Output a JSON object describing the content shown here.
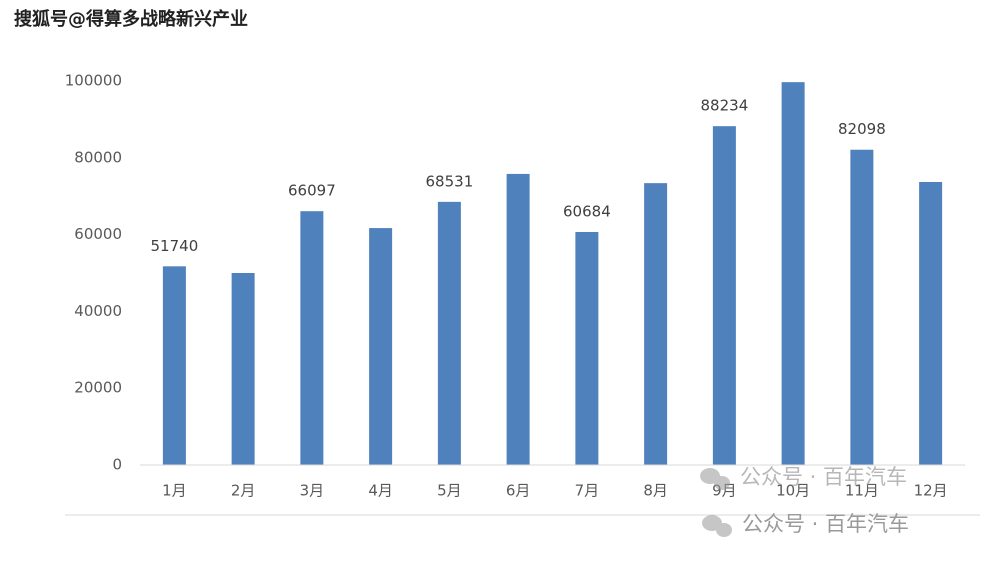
{
  "chart_data": {
    "type": "bar",
    "categories": [
      "1月",
      "2月",
      "3月",
      "4月",
      "5月",
      "6月",
      "7月",
      "8月",
      "9月",
      "10月",
      "11月",
      "12月"
    ],
    "values": [
      51740,
      50000,
      66097,
      61700,
      68531,
      75800,
      60684,
      73400,
      88234,
      99700,
      82098,
      73700
    ],
    "data_labels": [
      true,
      false,
      true,
      false,
      true,
      false,
      true,
      false,
      true,
      false,
      true,
      false
    ],
    "color": "#4f81bd",
    "ylim": [
      0,
      100000
    ],
    "yticks": [
      0,
      20000,
      40000,
      60000,
      80000,
      100000
    ],
    "grid": false
  },
  "watermarks": [
    "搜狐号@得算多战略新兴产业",
    "公众号 · 百年汽车"
  ]
}
